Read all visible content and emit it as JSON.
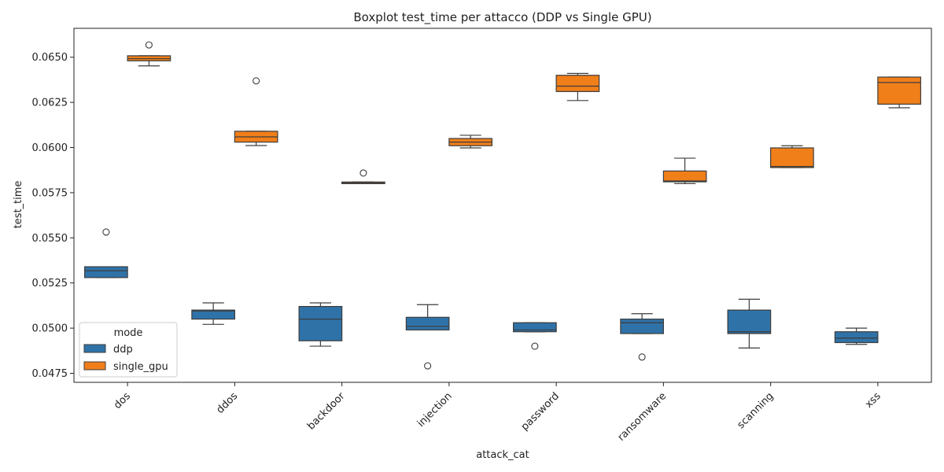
{
  "chart_data": {
    "type": "boxplot",
    "title": "Boxplot test_time per attacco (DDP vs Single GPU)",
    "xlabel": "attack_cat",
    "ylabel": "test_time",
    "ylim": [
      0.047,
      0.0666
    ],
    "yticks": [
      "0.0475",
      "0.0500",
      "0.0525",
      "0.0550",
      "0.0575",
      "0.0600",
      "0.0625",
      "0.0650"
    ],
    "categories": [
      "dos",
      "ddos",
      "backdoor",
      "injection",
      "password",
      "ransomware",
      "scanning",
      "xss"
    ],
    "grid": false,
    "legend": {
      "title": "mode",
      "position": "lower-left"
    },
    "series": [
      {
        "name": "ddp",
        "color": "#2f72a8",
        "boxes": [
          {
            "whisker_low": 0.0528,
            "q1": 0.0528,
            "median": 0.05318,
            "q3": 0.0534,
            "whisker_high": 0.0534,
            "outliers": [
              0.05532
            ]
          },
          {
            "whisker_low": 0.05021,
            "q1": 0.0505,
            "median": 0.05095,
            "q3": 0.051,
            "whisker_high": 0.0514,
            "outliers": []
          },
          {
            "whisker_low": 0.049,
            "q1": 0.0493,
            "median": 0.0505,
            "q3": 0.0512,
            "whisker_high": 0.0514,
            "outliers": []
          },
          {
            "whisker_low": 0.0499,
            "q1": 0.0499,
            "median": 0.0501,
            "q3": 0.0506,
            "whisker_high": 0.0513,
            "outliers": [
              0.04791
            ]
          },
          {
            "whisker_low": 0.0498,
            "q1": 0.0498,
            "median": 0.0499,
            "q3": 0.0503,
            "whisker_high": 0.0503,
            "outliers": [
              0.049
            ]
          },
          {
            "whisker_low": 0.0497,
            "q1": 0.0497,
            "median": 0.0503,
            "q3": 0.0505,
            "whisker_high": 0.0508,
            "outliers": [
              0.0484
            ]
          },
          {
            "whisker_low": 0.0489,
            "q1": 0.0497,
            "median": 0.0498,
            "q3": 0.051,
            "whisker_high": 0.0516,
            "outliers": []
          },
          {
            "whisker_low": 0.0491,
            "q1": 0.0492,
            "median": 0.04945,
            "q3": 0.0498,
            "whisker_high": 0.05,
            "outliers": []
          }
        ]
      },
      {
        "name": "single_gpu",
        "color": "#f07f1a",
        "boxes": [
          {
            "whisker_low": 0.06452,
            "q1": 0.0648,
            "median": 0.06492,
            "q3": 0.06508,
            "whisker_high": 0.06508,
            "outliers": [
              0.06568
            ]
          },
          {
            "whisker_low": 0.06011,
            "q1": 0.0603,
            "median": 0.06059,
            "q3": 0.0609,
            "whisker_high": 0.0609,
            "outliers": [
              0.06369
            ]
          },
          {
            "whisker_low": 0.058,
            "q1": 0.058,
            "median": 0.05805,
            "q3": 0.05809,
            "whisker_high": 0.05809,
            "outliers": [
              0.05859
            ]
          },
          {
            "whisker_low": 0.05998,
            "q1": 0.0601,
            "median": 0.0603,
            "q3": 0.0605,
            "whisker_high": 0.06068,
            "outliers": []
          },
          {
            "whisker_low": 0.0626,
            "q1": 0.0631,
            "median": 0.0634,
            "q3": 0.064,
            "whisker_high": 0.0641,
            "outliers": []
          },
          {
            "whisker_low": 0.058,
            "q1": 0.0581,
            "median": 0.05815,
            "q3": 0.0587,
            "whisker_high": 0.05941,
            "outliers": []
          },
          {
            "whisker_low": 0.05889,
            "q1": 0.05889,
            "median": 0.05895,
            "q3": 0.05998,
            "whisker_high": 0.0601,
            "outliers": []
          },
          {
            "whisker_low": 0.0622,
            "q1": 0.0624,
            "median": 0.0636,
            "q3": 0.0639,
            "whisker_high": 0.0639,
            "outliers": []
          }
        ]
      }
    ]
  }
}
